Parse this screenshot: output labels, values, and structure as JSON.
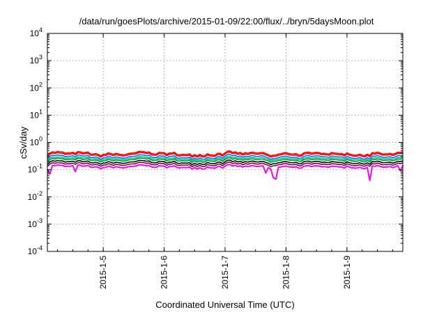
{
  "chart_data": {
    "type": "line",
    "title": "/data/run/goesPlots/archive/2015-01-09/22:00/flux/../bryn/5daysMoon.plot",
    "xlabel": "Coordinated Universal Time (UTC)",
    "ylabel": "cSv/day",
    "yscale": "log",
    "ylim": [
      0.0001,
      10000
    ],
    "xlim": [
      "2015-01-04 02:00",
      "2015-01-09 22:00"
    ],
    "grid": true,
    "y_ticks": [
      {
        "base": "10",
        "exp": "-4",
        "value": 0.0001
      },
      {
        "base": "10",
        "exp": "-3",
        "value": 0.001
      },
      {
        "base": "10",
        "exp": "-2",
        "value": 0.01
      },
      {
        "base": "10",
        "exp": "-1",
        "value": 0.1
      },
      {
        "base": "10",
        "exp": "0",
        "value": 1
      },
      {
        "base": "10",
        "exp": "1",
        "value": 10
      },
      {
        "base": "10",
        "exp": "2",
        "value": 100
      },
      {
        "base": "10",
        "exp": "3",
        "value": 1000
      },
      {
        "base": "10",
        "exp": "4",
        "value": 10000
      }
    ],
    "x_ticks": [
      {
        "label": "2015-1-5",
        "value": "2015-01-05 00:00"
      },
      {
        "label": "2015-1-6",
        "value": "2015-01-06 00:00"
      },
      {
        "label": "2015-1-7",
        "value": "2015-01-07 00:00"
      },
      {
        "label": "2015-1-8",
        "value": "2015-01-08 00:00"
      },
      {
        "label": "2015-1-9",
        "value": "2015-01-09 00:00"
      }
    ],
    "series": [
      {
        "color": "#ff00ff",
        "level": 0.13,
        "amp": 0.06,
        "dips": [
          {
            "t": "2015-01-04 02:50",
            "value": 0.07
          },
          {
            "t": "2015-01-04 12:45",
            "value": 0.085
          },
          {
            "t": "2015-01-07 15:50",
            "value": 0.075
          },
          {
            "t": "2015-01-07 16:30",
            "value": 0.06
          },
          {
            "t": "2015-01-07 19:00",
            "value": 0.05
          },
          {
            "t": "2015-01-07 19:40",
            "value": 0.045
          },
          {
            "t": "2015-01-07 20:30",
            "value": 0.06
          },
          {
            "t": "2015-01-09 08:40",
            "value": 0.04
          },
          {
            "t": "2015-01-09 21:00",
            "value": 0.09
          }
        ]
      },
      {
        "color": "#800040",
        "level": 0.16,
        "amp": 0.06,
        "dips": []
      },
      {
        "color": "#000000",
        "level": 0.19,
        "amp": 0.06,
        "dips": []
      },
      {
        "color": "#00a000",
        "level": 0.23,
        "amp": 0.06,
        "dips": []
      },
      {
        "color": "#00c0c0",
        "level": 0.26,
        "amp": 0.06,
        "dips": []
      },
      {
        "color": "#0070ff",
        "level": 0.3,
        "amp": 0.07,
        "dips": []
      },
      {
        "color": "#ff0000",
        "level": 0.36,
        "amp": 0.07,
        "dips": []
      },
      {
        "color": "#ff0000",
        "level": 0.4,
        "amp": 0.07,
        "dips": []
      }
    ]
  }
}
